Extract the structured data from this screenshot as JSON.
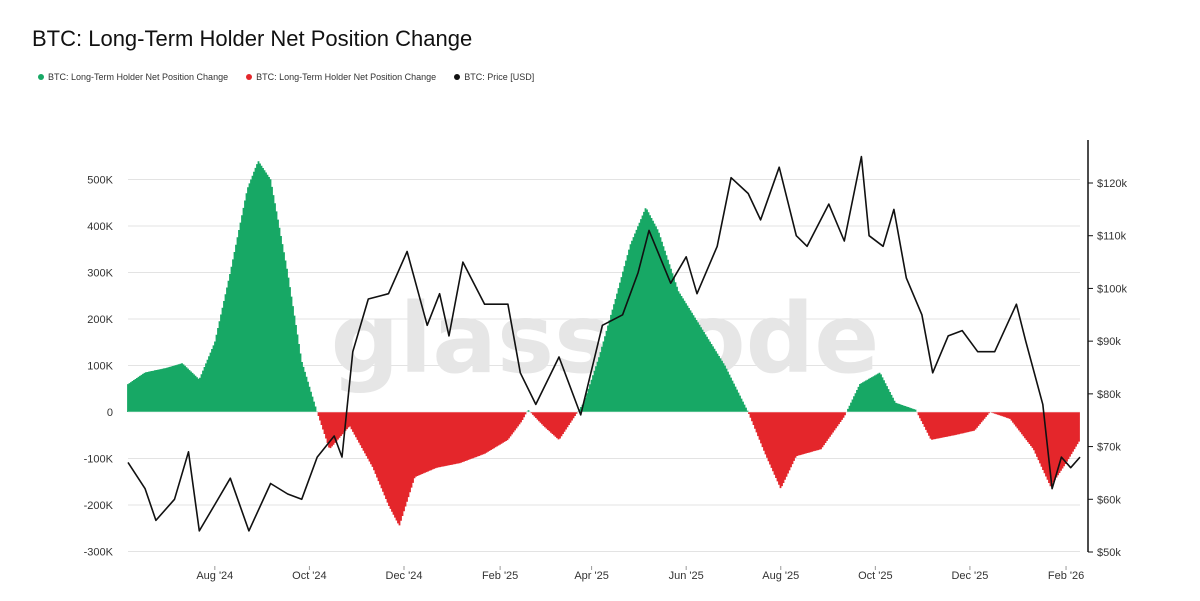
{
  "chart_data": {
    "type": "area",
    "title": "BTC: Long-Term Holder Net Position Change",
    "legend": [
      {
        "label": "BTC: Long-Term Holder Net Position Change",
        "color": "#17a865"
      },
      {
        "label": "BTC: Long-Term Holder Net Position Change",
        "color": "#e4262b"
      },
      {
        "label": "BTC: Price [USD]",
        "color": "#111111"
      }
    ],
    "watermark": "glassnode",
    "x_ticks": [
      "Aug '24",
      "Oct '24",
      "Dec '24",
      "Feb '25",
      "Apr '25",
      "Jun '25",
      "Aug '25",
      "Oct '25",
      "Dec '25",
      "Feb '26"
    ],
    "y_left": {
      "ticks": [
        "500K",
        "400K",
        "300K",
        "200K",
        "100K",
        "0",
        "-100K",
        "-200K",
        "-300K"
      ],
      "ylim": [
        -300000,
        540000
      ]
    },
    "y_right": {
      "ticks": [
        "$120k",
        "$110k",
        "$100k",
        "$90k",
        "$80k",
        "$70k",
        "$60k",
        "$50k"
      ],
      "ylim": [
        50000,
        127000
      ]
    },
    "x_range": [
      "2024-06-20",
      "2026-02-24"
    ],
    "series": [
      {
        "name": "BTC: Long-Term Holder Net Position Change",
        "axis": "left",
        "points": [
          [
            "2024-06-20",
            60000
          ],
          [
            "2024-07-01",
            85000
          ],
          [
            "2024-07-15",
            95000
          ],
          [
            "2024-07-25",
            105000
          ],
          [
            "2024-08-05",
            70000
          ],
          [
            "2024-08-15",
            150000
          ],
          [
            "2024-08-25",
            300000
          ],
          [
            "2024-09-05",
            480000
          ],
          [
            "2024-09-12",
            540000
          ],
          [
            "2024-09-20",
            500000
          ],
          [
            "2024-10-01",
            300000
          ],
          [
            "2024-10-10",
            110000
          ],
          [
            "2024-10-20",
            0
          ],
          [
            "2024-10-28",
            -80000
          ],
          [
            "2024-11-10",
            -30000
          ],
          [
            "2024-11-25",
            -120000
          ],
          [
            "2024-12-05",
            -200000
          ],
          [
            "2024-12-12",
            -245000
          ],
          [
            "2024-12-22",
            -140000
          ],
          [
            "2025-01-05",
            -120000
          ],
          [
            "2025-01-20",
            -110000
          ],
          [
            "2025-02-05",
            -90000
          ],
          [
            "2025-02-20",
            -60000
          ],
          [
            "2025-03-01",
            -20000
          ],
          [
            "2025-03-05",
            5000
          ],
          [
            "2025-03-15",
            -30000
          ],
          [
            "2025-03-25",
            -60000
          ],
          [
            "2025-04-05",
            -5000
          ],
          [
            "2025-04-10",
            20000
          ],
          [
            "2025-04-20",
            120000
          ],
          [
            "2025-05-01",
            250000
          ],
          [
            "2025-05-10",
            360000
          ],
          [
            "2025-05-20",
            440000
          ],
          [
            "2025-05-28",
            390000
          ],
          [
            "2025-06-10",
            260000
          ],
          [
            "2025-06-25",
            180000
          ],
          [
            "2025-07-10",
            100000
          ],
          [
            "2025-07-25",
            0
          ],
          [
            "2025-08-05",
            -90000
          ],
          [
            "2025-08-15",
            -165000
          ],
          [
            "2025-08-25",
            -95000
          ],
          [
            "2025-09-10",
            -80000
          ],
          [
            "2025-09-25",
            -10000
          ],
          [
            "2025-10-05",
            60000
          ],
          [
            "2025-10-18",
            85000
          ],
          [
            "2025-10-28",
            20000
          ],
          [
            "2025-11-10",
            5000
          ],
          [
            "2025-11-20",
            -60000
          ],
          [
            "2025-12-05",
            -50000
          ],
          [
            "2025-12-18",
            -40000
          ],
          [
            "2025-12-28",
            0
          ],
          [
            "2026-01-10",
            -15000
          ],
          [
            "2026-01-25",
            -80000
          ],
          [
            "2026-02-05",
            -160000
          ],
          [
            "2026-02-15",
            -110000
          ],
          [
            "2026-02-24",
            -60000
          ]
        ]
      },
      {
        "name": "BTC: Price [USD]",
        "axis": "right",
        "points": [
          [
            "2024-06-20",
            67000
          ],
          [
            "2024-07-01",
            62000
          ],
          [
            "2024-07-08",
            56000
          ],
          [
            "2024-07-20",
            60000
          ],
          [
            "2024-07-29",
            69000
          ],
          [
            "2024-08-05",
            54000
          ],
          [
            "2024-08-15",
            59000
          ],
          [
            "2024-08-25",
            64000
          ],
          [
            "2024-09-06",
            54000
          ],
          [
            "2024-09-20",
            63000
          ],
          [
            "2024-10-01",
            61000
          ],
          [
            "2024-10-10",
            60000
          ],
          [
            "2024-10-20",
            68000
          ],
          [
            "2024-10-31",
            72000
          ],
          [
            "2024-11-05",
            68000
          ],
          [
            "2024-11-12",
            88000
          ],
          [
            "2024-11-22",
            98000
          ],
          [
            "2024-12-05",
            99000
          ],
          [
            "2024-12-17",
            107000
          ],
          [
            "2024-12-30",
            93000
          ],
          [
            "2025-01-07",
            99000
          ],
          [
            "2025-01-13",
            91000
          ],
          [
            "2025-01-22",
            105000
          ],
          [
            "2025-02-05",
            97000
          ],
          [
            "2025-02-20",
            97000
          ],
          [
            "2025-02-28",
            84000
          ],
          [
            "2025-03-10",
            78000
          ],
          [
            "2025-03-25",
            87000
          ],
          [
            "2025-04-08",
            76000
          ],
          [
            "2025-04-22",
            93000
          ],
          [
            "2025-05-05",
            95000
          ],
          [
            "2025-05-15",
            103000
          ],
          [
            "2025-05-22",
            111000
          ],
          [
            "2025-06-05",
            101000
          ],
          [
            "2025-06-15",
            106000
          ],
          [
            "2025-06-22",
            99000
          ],
          [
            "2025-07-05",
            108000
          ],
          [
            "2025-07-14",
            121000
          ],
          [
            "2025-07-25",
            118000
          ],
          [
            "2025-08-02",
            113000
          ],
          [
            "2025-08-14",
            123000
          ],
          [
            "2025-08-25",
            110000
          ],
          [
            "2025-09-01",
            108000
          ],
          [
            "2025-09-15",
            116000
          ],
          [
            "2025-09-25",
            109000
          ],
          [
            "2025-10-06",
            125000
          ],
          [
            "2025-10-11",
            110000
          ],
          [
            "2025-10-20",
            108000
          ],
          [
            "2025-10-27",
            115000
          ],
          [
            "2025-11-04",
            102000
          ],
          [
            "2025-11-14",
            95000
          ],
          [
            "2025-11-21",
            84000
          ],
          [
            "2025-12-01",
            91000
          ],
          [
            "2025-12-10",
            92000
          ],
          [
            "2025-12-20",
            88000
          ],
          [
            "2025-12-31",
            88000
          ],
          [
            "2026-01-14",
            97000
          ],
          [
            "2026-01-20",
            90000
          ],
          [
            "2026-01-31",
            78000
          ],
          [
            "2026-02-06",
            62000
          ],
          [
            "2026-02-12",
            68000
          ],
          [
            "2026-02-18",
            66000
          ],
          [
            "2026-02-24",
            68000
          ]
        ]
      }
    ],
    "colors": {
      "positive": "#17a865",
      "negative": "#e4262b",
      "price": "#111111",
      "grid": "#e3e3e3"
    },
    "grid": true,
    "legend_position": "top-left"
  }
}
